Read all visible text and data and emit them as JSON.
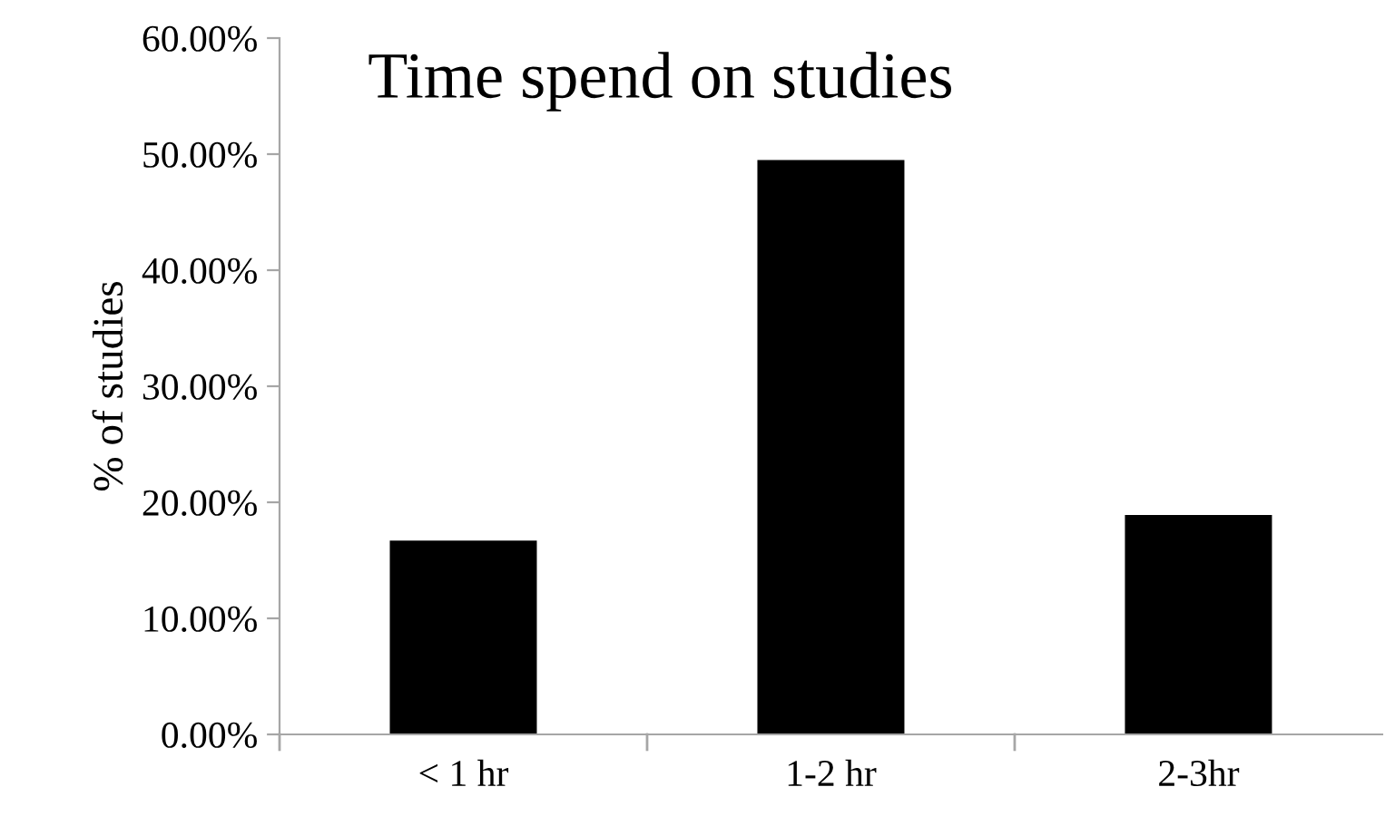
{
  "chart_data": {
    "type": "bar",
    "title": "Time spend on studies",
    "ylabel": "% of studies",
    "categories": [
      "< 1 hr",
      "1-2 hr",
      "2-3hr"
    ],
    "values": [
      16.7,
      49.5,
      18.9
    ],
    "color": "#000000",
    "ylim": [
      0,
      60
    ],
    "yticks": [
      {
        "value": 0,
        "label": "0.00%"
      },
      {
        "value": 10,
        "label": "10.00%"
      },
      {
        "value": 20,
        "label": "20.00%"
      },
      {
        "value": 30,
        "label": "30.00%"
      },
      {
        "value": 40,
        "label": "40.00%"
      },
      {
        "value": 50,
        "label": "50.00%"
      },
      {
        "value": 60,
        "label": "60.00%"
      }
    ],
    "grid": false,
    "legend": false
  }
}
